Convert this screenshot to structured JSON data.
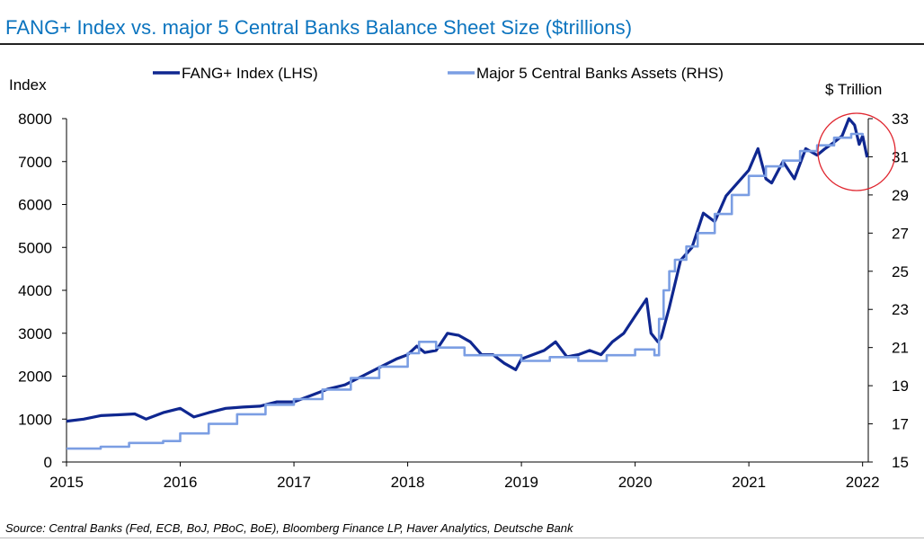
{
  "title": "FANG+ Index vs. major 5 Central Banks Balance Sheet Size ($trillions)",
  "source": "Source: Central Banks (Fed, ECB, BoJ, PBoC, BoE), Bloomberg Finance LP, Haver Analytics, Deutsche Bank",
  "colors": {
    "title": "#0b74bf",
    "fang": "#0f2790",
    "banks": "#7b9ee3",
    "annotation_circle": "#e0262f"
  },
  "chart_data": {
    "type": "line",
    "title": "FANG+ Index vs. major 5 Central Banks Balance Sheet Size ($trillions)",
    "xlabel": "",
    "ylabel_left": "Index",
    "ylabel_right": "$ Trillion",
    "x_ticks": [
      "2015",
      "2016",
      "2017",
      "2018",
      "2019",
      "2020",
      "2021",
      "2022"
    ],
    "x_range": [
      2015,
      2022.05
    ],
    "y_left_ticks": [
      "0",
      "1000",
      "2000",
      "3000",
      "4000",
      "5000",
      "6000",
      "7000",
      "8000"
    ],
    "y_left_range": [
      0,
      8000
    ],
    "y_right_ticks": [
      "15",
      "17",
      "19",
      "21",
      "23",
      "25",
      "27",
      "29",
      "31",
      "33"
    ],
    "y_right_range": [
      15,
      33
    ],
    "grid": false,
    "legend_position": "top",
    "annotation": "red circle highlighting late-2021 to early-2022 peak",
    "series": [
      {
        "name": "FANG+ Index (LHS)",
        "axis": "left",
        "style": "solid",
        "x": [
          2015.0,
          2015.15,
          2015.3,
          2015.45,
          2015.6,
          2015.7,
          2015.85,
          2016.0,
          2016.12,
          2016.25,
          2016.4,
          2016.55,
          2016.7,
          2016.85,
          2017.0,
          2017.15,
          2017.3,
          2017.45,
          2017.6,
          2017.75,
          2017.9,
          2018.0,
          2018.08,
          2018.15,
          2018.25,
          2018.35,
          2018.45,
          2018.55,
          2018.65,
          2018.75,
          2018.85,
          2018.95,
          2019.0,
          2019.1,
          2019.2,
          2019.3,
          2019.4,
          2019.5,
          2019.6,
          2019.7,
          2019.8,
          2019.9,
          2020.0,
          2020.1,
          2020.14,
          2020.2,
          2020.23,
          2020.3,
          2020.4,
          2020.5,
          2020.6,
          2020.7,
          2020.8,
          2020.9,
          2021.0,
          2021.08,
          2021.15,
          2021.2,
          2021.3,
          2021.4,
          2021.5,
          2021.6,
          2021.67,
          2021.75,
          2021.82,
          2021.88,
          2021.93,
          2021.97,
          2022.0,
          2022.04
        ],
        "values": [
          950,
          1000,
          1080,
          1100,
          1120,
          1000,
          1150,
          1250,
          1050,
          1150,
          1250,
          1280,
          1300,
          1400,
          1400,
          1550,
          1700,
          1800,
          2000,
          2200,
          2400,
          2500,
          2700,
          2550,
          2600,
          3000,
          2950,
          2800,
          2500,
          2500,
          2300,
          2150,
          2400,
          2500,
          2600,
          2800,
          2450,
          2500,
          2600,
          2500,
          2800,
          3000,
          3400,
          3800,
          3000,
          2800,
          2900,
          3600,
          4700,
          5000,
          5800,
          5600,
          6200,
          6500,
          6800,
          7300,
          6600,
          6500,
          7000,
          6600,
          7300,
          7150,
          7300,
          7450,
          7600,
          8000,
          7850,
          7400,
          7600,
          7100
        ]
      },
      {
        "name": "Major 5 Central Banks Assets (RHS)",
        "axis": "right",
        "style": "step",
        "x": [
          2015.0,
          2015.3,
          2015.55,
          2015.85,
          2016.0,
          2016.25,
          2016.5,
          2016.75,
          2017.0,
          2017.25,
          2017.5,
          2017.75,
          2018.0,
          2018.1,
          2018.25,
          2018.5,
          2018.75,
          2019.0,
          2019.25,
          2019.5,
          2019.75,
          2020.0,
          2020.17,
          2020.21,
          2020.25,
          2020.3,
          2020.35,
          2020.45,
          2020.55,
          2020.7,
          2020.85,
          2021.0,
          2021.15,
          2021.3,
          2021.45,
          2021.6,
          2021.75,
          2021.9,
          2022.0
        ],
        "values": [
          15.7,
          15.8,
          16.0,
          16.1,
          16.5,
          17.0,
          17.5,
          18.0,
          18.3,
          18.8,
          19.4,
          20.0,
          20.7,
          21.3,
          21.0,
          20.6,
          20.6,
          20.3,
          20.5,
          20.3,
          20.6,
          20.9,
          20.6,
          22.5,
          24.0,
          25.0,
          25.6,
          26.3,
          27.0,
          28.0,
          29.0,
          30.0,
          30.5,
          30.8,
          31.3,
          31.6,
          32.0,
          32.2,
          32.1
        ]
      }
    ]
  }
}
